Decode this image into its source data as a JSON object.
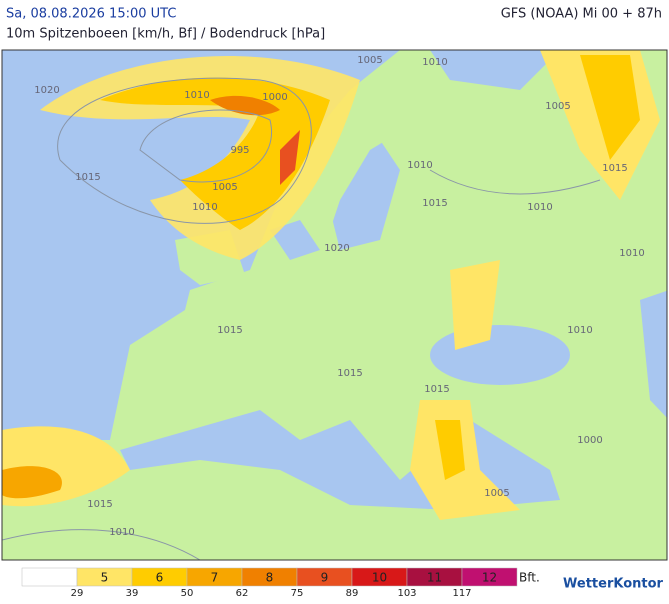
{
  "header": {
    "date": "Sa, 08.08.2026 15:00 UTC",
    "model": "GFS (NOAA) Mi 00 + 87h",
    "subtitle": "10m Spitzenboeen [km/h, Bf] / Bodendruck [hPa]"
  },
  "map": {
    "isobar_labels": [
      "1005",
      "1010",
      "1020",
      "1010",
      "1000",
      "1005",
      "995",
      "1015",
      "1005",
      "1010",
      "1015",
      "1010",
      "1015",
      "1010",
      "1020",
      "1010",
      "1015",
      "1010",
      "1015",
      "1015",
      "1000",
      "1015",
      "1005",
      "1010"
    ]
  },
  "legend": {
    "colors": [
      "#ffffff",
      "#ffe566",
      "#ffcc00",
      "#f7a600",
      "#f08000",
      "#e85020",
      "#d81818",
      "#a81040",
      "#c01070"
    ],
    "bft": [
      5,
      6,
      7,
      8,
      9,
      10,
      11,
      12
    ],
    "unit": "Bft.",
    "kmh": [
      29,
      39,
      50,
      62,
      75,
      89,
      103,
      117
    ]
  },
  "logo": "WetterKontor"
}
